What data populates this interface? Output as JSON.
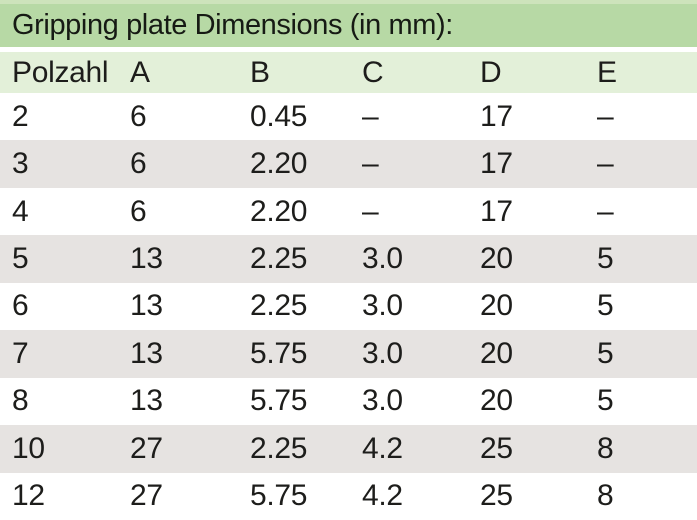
{
  "title_bar": {
    "text": "Gripping plate Dimensions (in mm):"
  },
  "table": {
    "columns": [
      "Polzahl",
      "A",
      "B",
      "C",
      "D",
      "E"
    ],
    "rows": [
      [
        "2",
        "6",
        "0.45",
        "–",
        "17",
        "–"
      ],
      [
        "3",
        "6",
        "2.20",
        "–",
        "17",
        "–"
      ],
      [
        "4",
        "6",
        "2.20",
        "–",
        "17",
        "–"
      ],
      [
        "5",
        "13",
        "2.25",
        "3.0",
        "20",
        "5"
      ],
      [
        "6",
        "13",
        "2.25",
        "3.0",
        "20",
        "5"
      ],
      [
        "7",
        "13",
        "5.75",
        "3.0",
        "20",
        "5"
      ],
      [
        "8",
        "13",
        "5.75",
        "3.0",
        "20",
        "5"
      ],
      [
        "10",
        "27",
        "2.25",
        "4.2",
        "25",
        "8"
      ],
      [
        "12",
        "27",
        "5.75",
        "4.2",
        "25",
        "8"
      ]
    ]
  },
  "colors": {
    "title_band": "#b7d9a5",
    "title_band_top_strip": "#cde3bb",
    "header_row": "#e3f0d9",
    "row_white": "#ffffff",
    "row_gray": "#e6e3e1",
    "text": "#1d1d1b"
  }
}
